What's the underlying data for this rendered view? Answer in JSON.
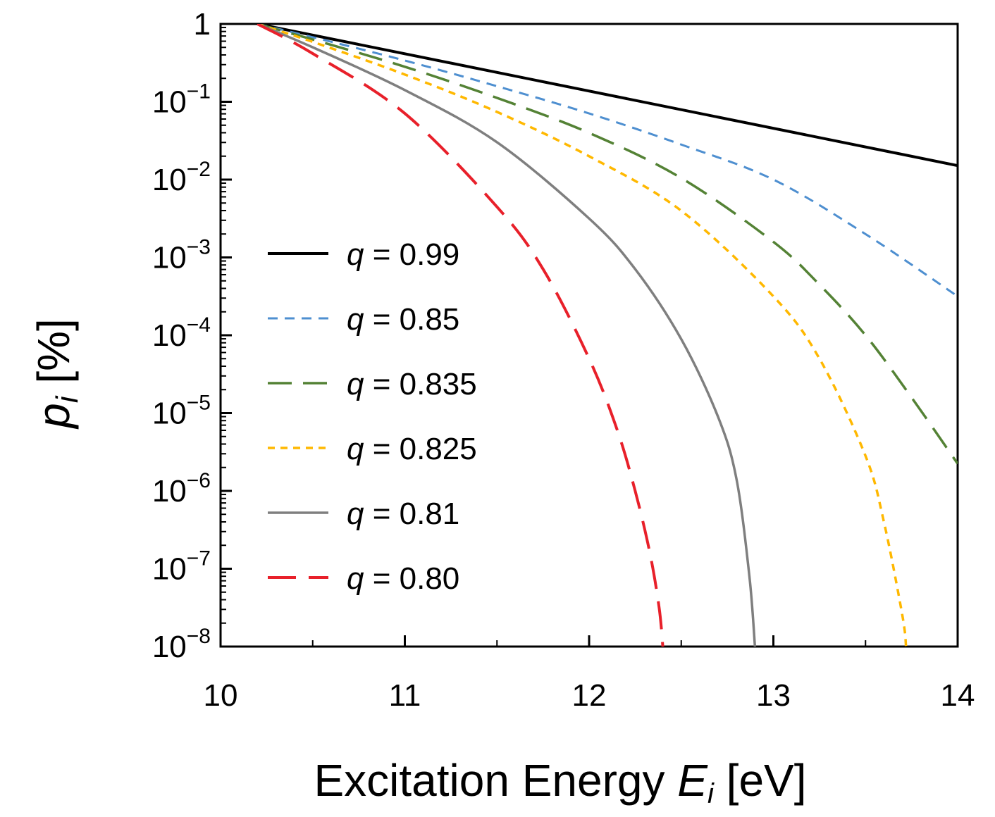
{
  "chart_data": {
    "type": "line",
    "xlabel": {
      "main": "Excitation Energy ",
      "var": "E",
      "sub": "i",
      "unit": " [eV]"
    },
    "ylabel": {
      "var": "p",
      "sub": "i",
      "unit": " [%]"
    },
    "xlim": [
      10,
      14
    ],
    "ylim": [
      1e-08,
      1
    ],
    "yscale": "log",
    "grid": false,
    "legend_position": "center-left",
    "x_ticks": [
      {
        "value": 10,
        "label": "10"
      },
      {
        "value": 11,
        "label": "11"
      },
      {
        "value": 12,
        "label": "12"
      },
      {
        "value": 13,
        "label": "13"
      },
      {
        "value": 14,
        "label": "14"
      }
    ],
    "y_ticks": [
      {
        "exp": 0,
        "base": "1",
        "sup": ""
      },
      {
        "exp": -1,
        "base": "10",
        "sup": "−1"
      },
      {
        "exp": -2,
        "base": "10",
        "sup": "−2"
      },
      {
        "exp": -3,
        "base": "10",
        "sup": "−3"
      },
      {
        "exp": -4,
        "base": "10",
        "sup": "−4"
      },
      {
        "exp": -5,
        "base": "10",
        "sup": "−5"
      },
      {
        "exp": -6,
        "base": "10",
        "sup": "−6"
      },
      {
        "exp": -7,
        "base": "10",
        "sup": "−7"
      },
      {
        "exp": -8,
        "base": "10",
        "sup": "−8"
      }
    ],
    "series": [
      {
        "name": "q = 0.99",
        "var": "q",
        "value_text": " = 0.99",
        "color": "#000000",
        "dash": "",
        "width": 4,
        "x": [
          10.2,
          14.0
        ],
        "y_log10": [
          0.0,
          -1.82
        ]
      },
      {
        "name": "q = 0.85",
        "var": "q",
        "value_text": " = 0.85",
        "color": "#4e8fd0",
        "dash": "14,10",
        "width": 3,
        "x": [
          10.2,
          10.5,
          11.0,
          11.5,
          12.0,
          12.5,
          13.0,
          13.5,
          14.0
        ],
        "y_log10": [
          0.0,
          -0.17,
          -0.47,
          -0.8,
          -1.15,
          -1.55,
          -2.0,
          -2.7,
          -3.5
        ]
      },
      {
        "name": "q = 0.835",
        "var": "q",
        "value_text": " = 0.835",
        "color": "#548235",
        "dash": "34,16",
        "width": 3.5,
        "x": [
          10.2,
          10.5,
          11.0,
          11.5,
          12.0,
          12.5,
          13.0,
          13.25,
          13.5,
          13.75,
          14.0
        ],
        "y_log10": [
          0.0,
          -0.2,
          -0.55,
          -0.95,
          -1.4,
          -1.98,
          -2.8,
          -3.35,
          -4.0,
          -4.8,
          -5.65
        ]
      },
      {
        "name": "q = 0.825",
        "var": "q",
        "value_text": " = 0.825",
        "color": "#ffb800",
        "dash": "10,8",
        "width": 3.5,
        "x": [
          10.2,
          10.5,
          11.0,
          11.5,
          12.0,
          12.5,
          13.0,
          13.25,
          13.5,
          13.6,
          13.7,
          13.72
        ],
        "y_log10": [
          0.0,
          -0.23,
          -0.65,
          -1.13,
          -1.7,
          -2.4,
          -3.5,
          -4.3,
          -5.55,
          -6.4,
          -7.6,
          -8.0
        ]
      },
      {
        "name": "q = 0.81",
        "var": "q",
        "value_text": " = 0.81",
        "color": "#7f7f7f",
        "dash": "",
        "width": 3.5,
        "x": [
          10.2,
          10.5,
          11.0,
          11.5,
          12.0,
          12.25,
          12.5,
          12.7,
          12.8,
          12.87,
          12.9
        ],
        "y_log10": [
          0.0,
          -0.3,
          -0.85,
          -1.52,
          -2.5,
          -3.15,
          -4.05,
          -5.05,
          -5.85,
          -7.1,
          -8.0
        ]
      },
      {
        "name": "q = 0.80",
        "var": "q",
        "value_text": " = 0.80",
        "color": "#e8202a",
        "dash": "40,18",
        "width": 4,
        "x": [
          10.2,
          10.5,
          11.0,
          11.5,
          11.75,
          12.0,
          12.15,
          12.25,
          12.33,
          12.38,
          12.4
        ],
        "y_log10": [
          0.0,
          -0.38,
          -1.15,
          -2.35,
          -3.15,
          -4.3,
          -5.2,
          -6.0,
          -6.8,
          -7.5,
          -8.0
        ]
      }
    ]
  }
}
